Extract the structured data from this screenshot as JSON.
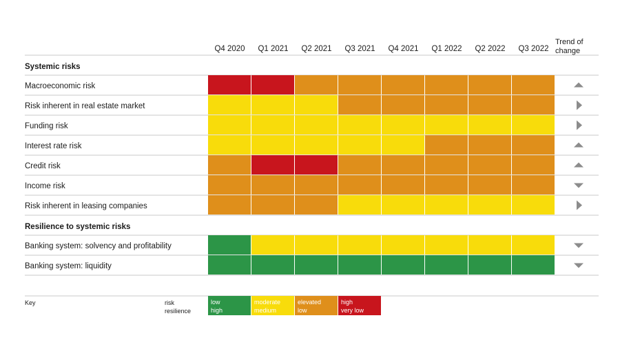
{
  "colors": {
    "green": "#2c9547",
    "yellow": "#f8dc0b",
    "orange": "#df8f1b",
    "red": "#c8151d",
    "arrow": "#8c8c8c",
    "rule": "#c8c8c8"
  },
  "chart_data": {
    "type": "heatmap",
    "columns": [
      "Q4 2020",
      "Q1 2021",
      "Q2 2021",
      "Q3 2021",
      "Q4 2021",
      "Q1 2022",
      "Q2 2022",
      "Q3 2022"
    ],
    "trend_header": [
      "Trend of",
      "change"
    ],
    "sections": [
      {
        "title": "Systemic risks",
        "rows": [
          {
            "label": "Macroeconomic risk",
            "levels": [
              "red",
              "red",
              "orange",
              "orange",
              "orange",
              "orange",
              "orange",
              "orange"
            ],
            "trend": "up"
          },
          {
            "label": "Risk inherent in real estate market",
            "levels": [
              "yellow",
              "yellow",
              "yellow",
              "orange",
              "orange",
              "orange",
              "orange",
              "orange"
            ],
            "trend": "right"
          },
          {
            "label": "Funding risk",
            "levels": [
              "yellow",
              "yellow",
              "yellow",
              "yellow",
              "yellow",
              "yellow",
              "yellow",
              "yellow"
            ],
            "trend": "right"
          },
          {
            "label": "Interest rate risk",
            "levels": [
              "yellow",
              "yellow",
              "yellow",
              "yellow",
              "yellow",
              "orange",
              "orange",
              "orange"
            ],
            "trend": "up"
          },
          {
            "label": "Credit risk",
            "levels": [
              "orange",
              "red",
              "red",
              "orange",
              "orange",
              "orange",
              "orange",
              "orange"
            ],
            "trend": "up"
          },
          {
            "label": "Income risk",
            "levels": [
              "orange",
              "orange",
              "orange",
              "orange",
              "orange",
              "orange",
              "orange",
              "orange"
            ],
            "trend": "down"
          },
          {
            "label": "Risk inherent in leasing companies",
            "levels": [
              "orange",
              "orange",
              "orange",
              "yellow",
              "yellow",
              "yellow",
              "yellow",
              "yellow"
            ],
            "trend": "right"
          }
        ]
      },
      {
        "title": "Resilience to systemic risks",
        "rows": [
          {
            "label": "Banking system: solvency and profitability",
            "levels": [
              "green",
              "yellow",
              "yellow",
              "yellow",
              "yellow",
              "yellow",
              "yellow",
              "yellow"
            ],
            "trend": "down"
          },
          {
            "label": "Banking system: liquidity",
            "levels": [
              "green",
              "green",
              "green",
              "green",
              "green",
              "green",
              "green",
              "green"
            ],
            "trend": "down"
          }
        ]
      }
    ],
    "key": {
      "title": "Key",
      "row_labels": [
        "risk",
        "resilience"
      ],
      "items": [
        {
          "level": "green",
          "risk": "low",
          "resilience": "high"
        },
        {
          "level": "yellow",
          "risk": "moderate",
          "resilience": "medium"
        },
        {
          "level": "orange",
          "risk": "elevated",
          "resilience": "low"
        },
        {
          "level": "red",
          "risk": "high",
          "resilience": "very low"
        }
      ]
    }
  }
}
